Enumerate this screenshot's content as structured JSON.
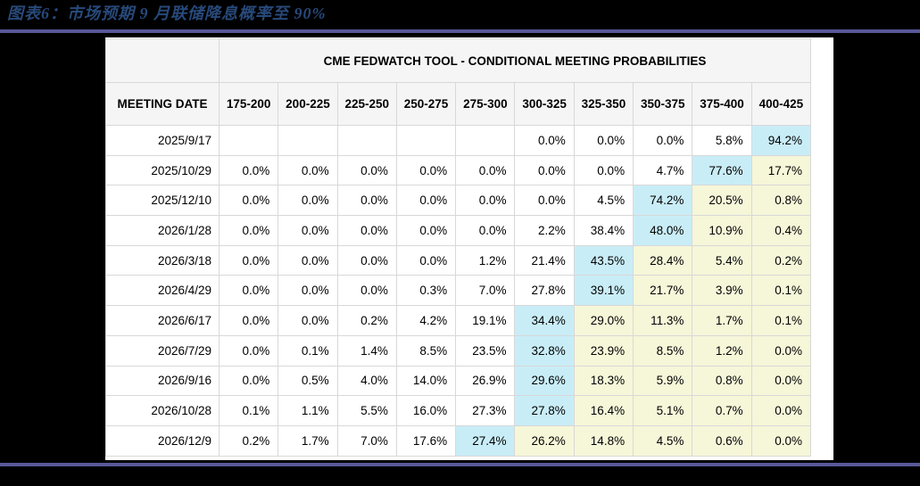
{
  "figure": {
    "caption": "图表6：市场预期 9 月联储降息概率至 90%"
  },
  "style": {
    "page_bg": "#000000",
    "caption_color": "#27497A",
    "divider_color": "#58589A",
    "card_bg": "#FFFFFF",
    "header_bg": "#F5F5F6",
    "grid_border": "#D8D8D8",
    "highlight_peak": "#C9EDF7",
    "highlight_tail": "#F6F6D9"
  },
  "chart_data": {
    "type": "table",
    "title": "CME FEDWATCH TOOL - CONDITIONAL MEETING PROBABILITIES",
    "row_header": "MEETING DATE",
    "columns": [
      "175-200",
      "200-225",
      "225-250",
      "250-275",
      "275-300",
      "300-325",
      "325-350",
      "350-375",
      "375-400",
      "400-425"
    ],
    "highlight_legend": {
      "peak": "highest probability in row (cyan)",
      "tail": "cells right of the peak (cream)"
    },
    "rows": [
      {
        "date": "2025/9/17",
        "values": [
          "",
          "",
          "",
          "",
          "",
          "0.0%",
          "0.0%",
          "0.0%",
          "5.8%",
          "94.2%"
        ],
        "mode_index": 9
      },
      {
        "date": "2025/10/29",
        "values": [
          "0.0%",
          "0.0%",
          "0.0%",
          "0.0%",
          "0.0%",
          "0.0%",
          "0.0%",
          "4.7%",
          "77.6%",
          "17.7%"
        ],
        "mode_index": 8
      },
      {
        "date": "2025/12/10",
        "values": [
          "0.0%",
          "0.0%",
          "0.0%",
          "0.0%",
          "0.0%",
          "0.0%",
          "4.5%",
          "74.2%",
          "20.5%",
          "0.8%"
        ],
        "mode_index": 7
      },
      {
        "date": "2026/1/28",
        "values": [
          "0.0%",
          "0.0%",
          "0.0%",
          "0.0%",
          "0.0%",
          "2.2%",
          "38.4%",
          "48.0%",
          "10.9%",
          "0.4%"
        ],
        "mode_index": 7
      },
      {
        "date": "2026/3/18",
        "values": [
          "0.0%",
          "0.0%",
          "0.0%",
          "0.0%",
          "1.2%",
          "21.4%",
          "43.5%",
          "28.4%",
          "5.4%",
          "0.2%"
        ],
        "mode_index": 6
      },
      {
        "date": "2026/4/29",
        "values": [
          "0.0%",
          "0.0%",
          "0.0%",
          "0.3%",
          "7.0%",
          "27.8%",
          "39.1%",
          "21.7%",
          "3.9%",
          "0.1%"
        ],
        "mode_index": 6
      },
      {
        "date": "2026/6/17",
        "values": [
          "0.0%",
          "0.0%",
          "0.2%",
          "4.2%",
          "19.1%",
          "34.4%",
          "29.0%",
          "11.3%",
          "1.7%",
          "0.1%"
        ],
        "mode_index": 5
      },
      {
        "date": "2026/7/29",
        "values": [
          "0.0%",
          "0.1%",
          "1.4%",
          "8.5%",
          "23.5%",
          "32.8%",
          "23.9%",
          "8.5%",
          "1.2%",
          "0.0%"
        ],
        "mode_index": 5
      },
      {
        "date": "2026/9/16",
        "values": [
          "0.0%",
          "0.5%",
          "4.0%",
          "14.0%",
          "26.9%",
          "29.6%",
          "18.3%",
          "5.9%",
          "0.8%",
          "0.0%"
        ],
        "mode_index": 5
      },
      {
        "date": "2026/10/28",
        "values": [
          "0.1%",
          "1.1%",
          "5.5%",
          "16.0%",
          "27.3%",
          "27.8%",
          "16.4%",
          "5.1%",
          "0.7%",
          "0.0%"
        ],
        "mode_index": 5
      },
      {
        "date": "2026/12/9",
        "values": [
          "0.2%",
          "1.7%",
          "7.0%",
          "17.6%",
          "27.4%",
          "26.2%",
          "14.8%",
          "4.5%",
          "0.6%",
          "0.0%"
        ],
        "mode_index": 4
      }
    ]
  }
}
